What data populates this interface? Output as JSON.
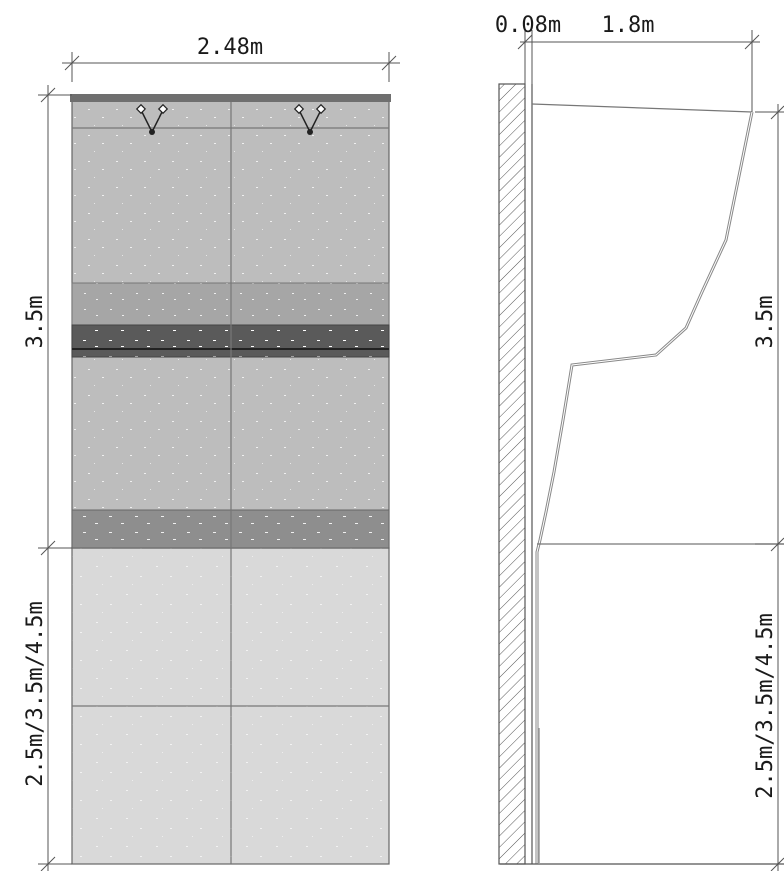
{
  "dimensions": {
    "front_width": "2.48m",
    "upper_height_left": "3.5m",
    "lower_height_left": "2.5m/3.5m/4.5m",
    "wall_thickness": "0.08m",
    "overhang_depth": "1.8m",
    "upper_height_right": "3.5m",
    "lower_height_right": "2.5m/3.5m/4.5m"
  },
  "colors": {
    "line": "#555555",
    "panel_mid": "#bdbdbd",
    "panel_dark": "#5a5a5a",
    "band": "#8e8e8e",
    "panel_light": "#d9d9d9",
    "top_cap": "#6f6f6f"
  },
  "icons": [
    "hold-icon",
    "hold-icon"
  ]
}
